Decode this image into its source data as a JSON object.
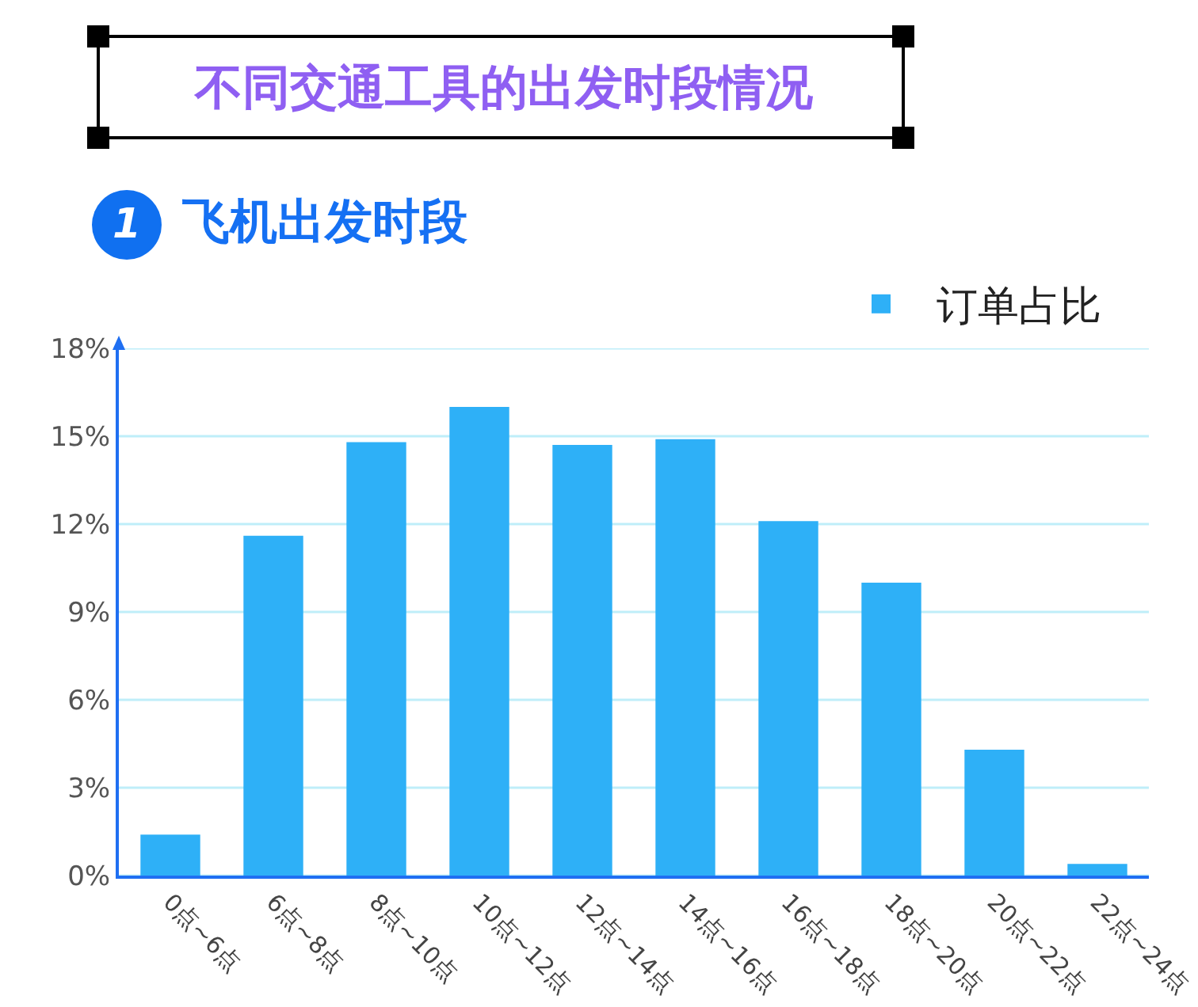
{
  "chart_data": {
    "type": "bar",
    "title": "不同交通工具的出发时段情况",
    "subtitle": "飞机出发时段",
    "annotations": [
      "1"
    ],
    "categories": [
      "0点~6点",
      "6点~8点",
      "8点~10点",
      "10点~12点",
      "12点~14点",
      "14点~16点",
      "16点~18点",
      "18点~20点",
      "20点~22点",
      "22点~24点"
    ],
    "series": [
      {
        "name": "订单占比",
        "color": "#2eb0f7",
        "values": [
          1.4,
          11.6,
          14.8,
          16.0,
          14.7,
          14.9,
          12.1,
          10.0,
          4.3,
          0.4
        ]
      }
    ],
    "ylim": [
      0,
      18
    ],
    "yticks": [
      {
        "value": 0,
        "label": "0%"
      },
      {
        "value": 3,
        "label": "3%"
      },
      {
        "value": 6,
        "label": "6%"
      },
      {
        "value": 9,
        "label": "9%"
      },
      {
        "value": 12,
        "label": "12%"
      },
      {
        "value": 15,
        "label": "15%"
      },
      {
        "value": 18,
        "label": "18%"
      }
    ],
    "grid": "y",
    "legend": "top right"
  }
}
